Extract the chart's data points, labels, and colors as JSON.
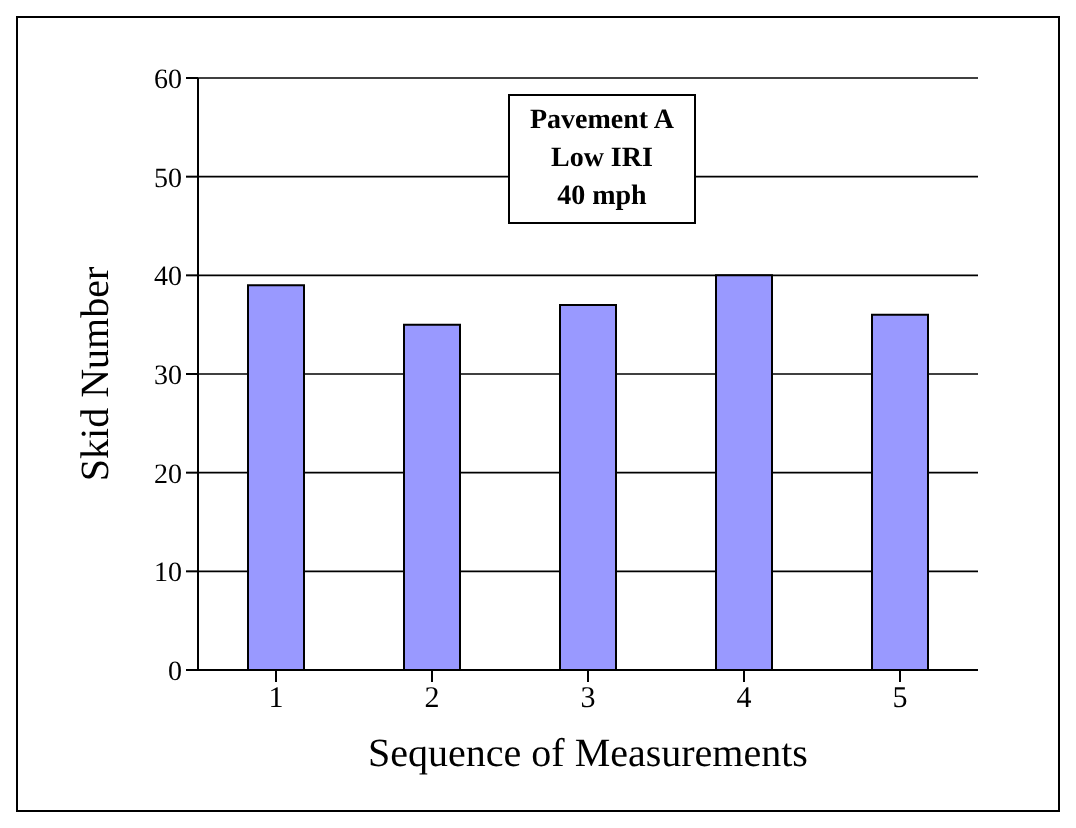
{
  "chart_data": {
    "type": "bar",
    "xlabel": "Sequence of Measurements",
    "ylabel": "Skid Number",
    "categories": [
      "1",
      "2",
      "3",
      "4",
      "5"
    ],
    "values": [
      39,
      35,
      37,
      40,
      36
    ],
    "color": "#9999ff",
    "ylim": [
      0,
      60
    ],
    "yticks": [
      0,
      10,
      20,
      30,
      40,
      50,
      60
    ],
    "grid": "y",
    "annotations": [
      "Pavement A",
      "Low IRI",
      "40 mph"
    ]
  }
}
